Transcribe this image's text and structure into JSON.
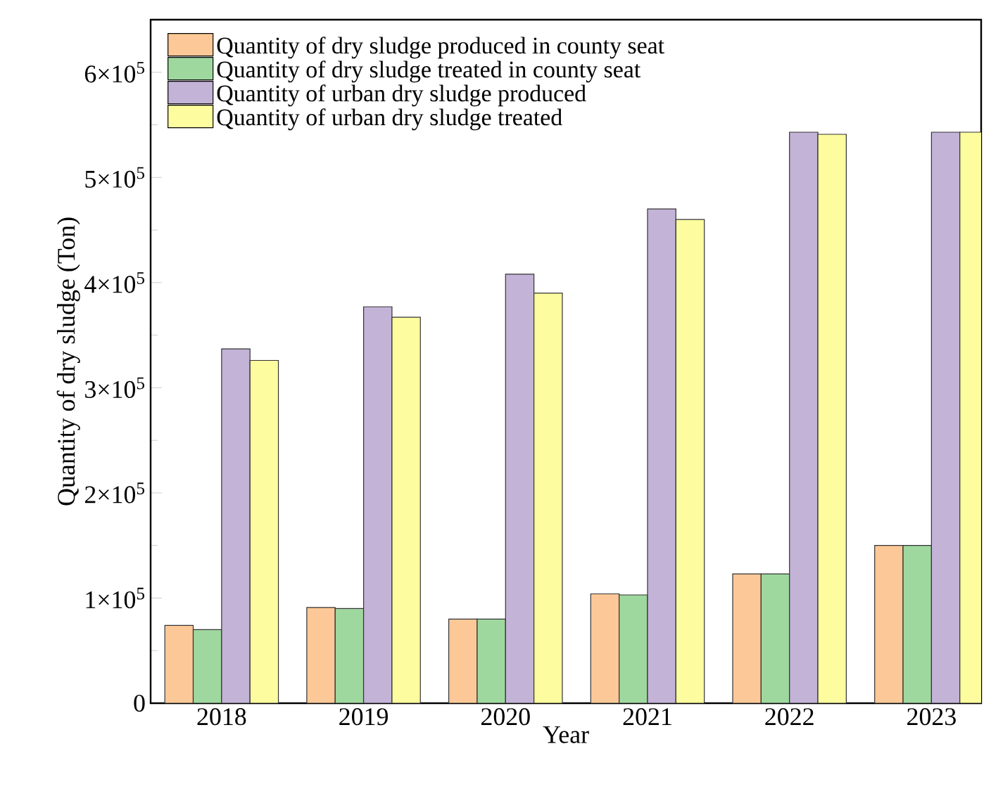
{
  "chart_data": {
    "type": "bar",
    "xlabel": "Year",
    "ylabel": "Quantity of dry sludge (Ton)",
    "categories": [
      "2018",
      "2019",
      "2020",
      "2021",
      "2022",
      "2023"
    ],
    "series": [
      {
        "name": "Quantity of dry sludge produced in county seat",
        "color": "#fcc897",
        "values": [
          74000,
          91000,
          80000,
          104000,
          123000,
          150000
        ]
      },
      {
        "name": "Quantity of dry sludge treated in county seat",
        "color": "#9fd89f",
        "values": [
          70000,
          90000,
          80000,
          103000,
          123000,
          150000
        ]
      },
      {
        "name": "Quantity of urban dry sludge produced",
        "color": "#c3b3d7",
        "values": [
          337000,
          377000,
          408000,
          470000,
          543000,
          543000
        ]
      },
      {
        "name": "Quantity of urban dry sludge treated",
        "color": "#fdfd9f",
        "values": [
          326000,
          367000,
          390000,
          460000,
          541000,
          543000
        ]
      }
    ],
    "ylim": [
      0,
      650000
    ],
    "yticks": [
      0,
      {
        "value": 100000,
        "label": "1×10$^{5}$"
      },
      {
        "value": 200000,
        "label": "2×10$^{5}$"
      },
      {
        "value": 300000,
        "label": "3×10$^{5}$"
      },
      {
        "value": 400000,
        "label": "4×10$^{5}$"
      },
      {
        "value": 500000,
        "label": "5×10$^{5}$"
      },
      {
        "value": 600000,
        "label": "6×10$^{5}$"
      }
    ],
    "legend": "top left"
  }
}
